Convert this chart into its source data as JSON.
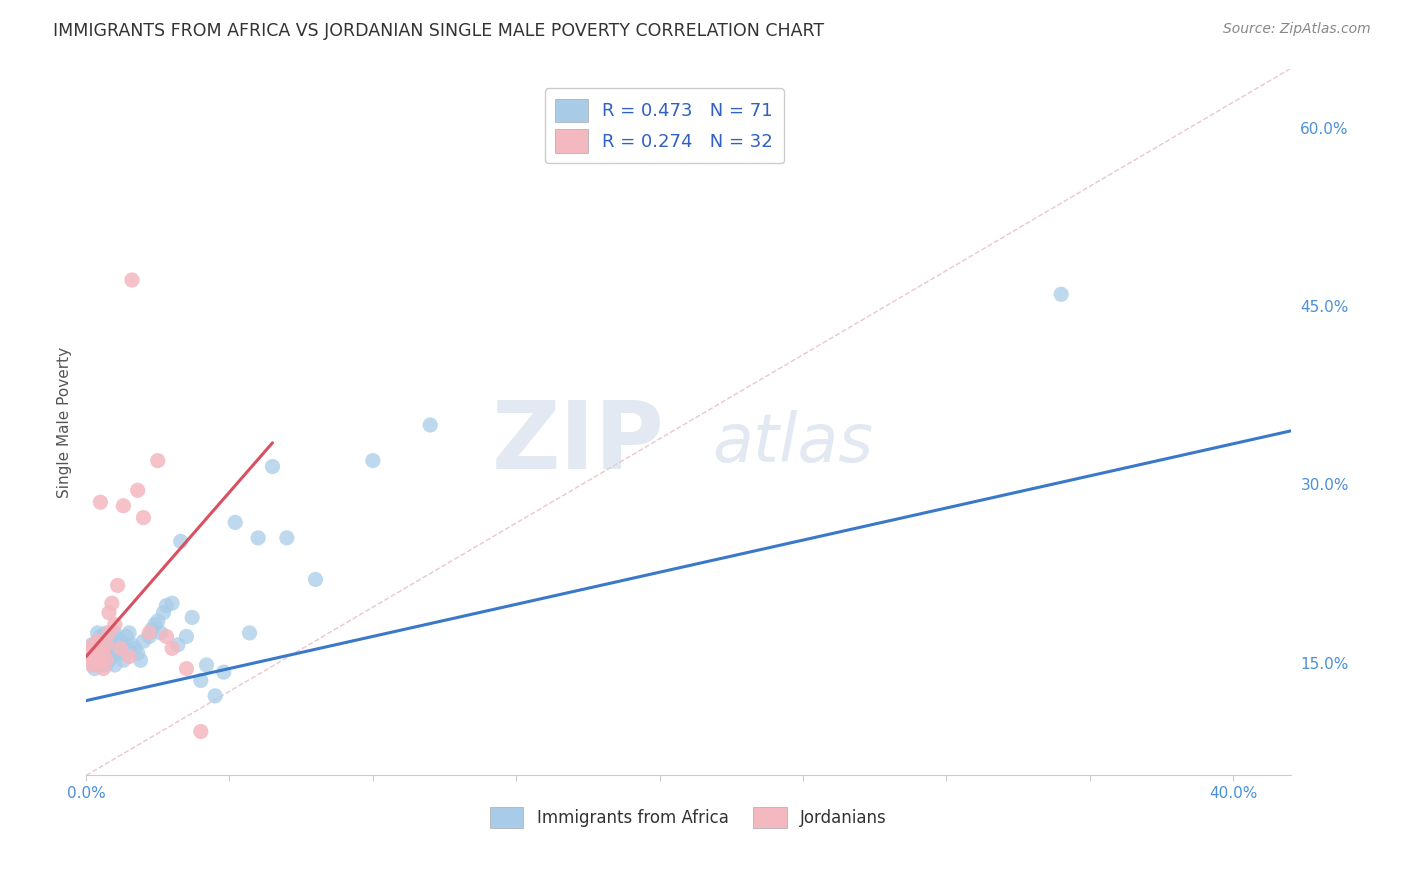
{
  "title": "IMMIGRANTS FROM AFRICA VS JORDANIAN SINGLE MALE POVERTY CORRELATION CHART",
  "source": "Source: ZipAtlas.com",
  "ylabel": "Single Male Poverty",
  "xlim": [
    0.0,
    0.42
  ],
  "ylim": [
    0.055,
    0.65
  ],
  "x_ticks": [
    0.0,
    0.05,
    0.1,
    0.15,
    0.2,
    0.25,
    0.3,
    0.35,
    0.4
  ],
  "y_ticks_right": [
    0.15,
    0.3,
    0.45,
    0.6
  ],
  "y_tick_labels_right": [
    "15.0%",
    "30.0%",
    "45.0%",
    "60.0%"
  ],
  "legend_r1_val": "0.473",
  "legend_n1_val": "71",
  "legend_r2_val": "0.274",
  "legend_n2_val": "32",
  "color_blue": "#a8cce8",
  "color_pink": "#f4b8c0",
  "color_blue_line": "#3a78c9",
  "color_pink_line": "#d95060",
  "color_legend_text": "#3060c0",
  "color_legend_label": "#333333",
  "watermark_zip": "ZIP",
  "watermark_atlas": "atlas",
  "diag_line_x": [
    0.0,
    0.42
  ],
  "diag_line_y": [
    0.055,
    0.65
  ],
  "africa_trend_x": [
    0.0,
    0.42
  ],
  "africa_trend_y": [
    0.118,
    0.345
  ],
  "jordan_trend_x": [
    0.0,
    0.065
  ],
  "jordan_trend_y": [
    0.155,
    0.335
  ],
  "africa_x": [
    0.001,
    0.001,
    0.002,
    0.002,
    0.003,
    0.003,
    0.003,
    0.004,
    0.004,
    0.004,
    0.005,
    0.005,
    0.005,
    0.005,
    0.006,
    0.006,
    0.006,
    0.006,
    0.007,
    0.007,
    0.007,
    0.007,
    0.008,
    0.008,
    0.008,
    0.009,
    0.009,
    0.009,
    0.01,
    0.01,
    0.01,
    0.01,
    0.011,
    0.011,
    0.012,
    0.012,
    0.013,
    0.013,
    0.014,
    0.015,
    0.015,
    0.016,
    0.017,
    0.018,
    0.019,
    0.02,
    0.022,
    0.023,
    0.024,
    0.025,
    0.026,
    0.027,
    0.028,
    0.03,
    0.032,
    0.033,
    0.035,
    0.037,
    0.04,
    0.042,
    0.045,
    0.048,
    0.052,
    0.057,
    0.06,
    0.065,
    0.07,
    0.08,
    0.1,
    0.12,
    0.34
  ],
  "africa_y": [
    0.155,
    0.16,
    0.15,
    0.165,
    0.145,
    0.158,
    0.165,
    0.152,
    0.168,
    0.175,
    0.148,
    0.155,
    0.165,
    0.172,
    0.15,
    0.158,
    0.165,
    0.172,
    0.148,
    0.158,
    0.165,
    0.175,
    0.152,
    0.162,
    0.17,
    0.155,
    0.165,
    0.172,
    0.148,
    0.158,
    0.168,
    0.175,
    0.162,
    0.17,
    0.158,
    0.168,
    0.152,
    0.165,
    0.172,
    0.16,
    0.175,
    0.165,
    0.162,
    0.158,
    0.152,
    0.168,
    0.172,
    0.178,
    0.182,
    0.185,
    0.175,
    0.192,
    0.198,
    0.2,
    0.165,
    0.252,
    0.172,
    0.188,
    0.135,
    0.148,
    0.122,
    0.142,
    0.268,
    0.175,
    0.255,
    0.315,
    0.255,
    0.22,
    0.32,
    0.35,
    0.46
  ],
  "jordan_x": [
    0.001,
    0.001,
    0.002,
    0.002,
    0.003,
    0.003,
    0.004,
    0.004,
    0.004,
    0.005,
    0.005,
    0.006,
    0.006,
    0.007,
    0.007,
    0.008,
    0.008,
    0.009,
    0.01,
    0.011,
    0.012,
    0.013,
    0.015,
    0.016,
    0.018,
    0.02,
    0.022,
    0.025,
    0.028,
    0.03,
    0.035,
    0.04
  ],
  "jordan_y": [
    0.155,
    0.162,
    0.148,
    0.158,
    0.152,
    0.165,
    0.148,
    0.16,
    0.168,
    0.152,
    0.285,
    0.145,
    0.158,
    0.152,
    0.165,
    0.192,
    0.175,
    0.2,
    0.182,
    0.215,
    0.162,
    0.282,
    0.155,
    0.472,
    0.295,
    0.272,
    0.175,
    0.32,
    0.172,
    0.162,
    0.145,
    0.092
  ],
  "background_color": "#ffffff",
  "grid_color": "#d5d5d5"
}
